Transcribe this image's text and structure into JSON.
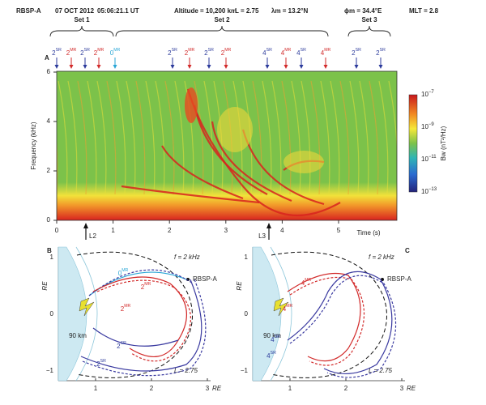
{
  "header": {
    "spacecraft": "RBSP-A",
    "date": "07 OCT 2012",
    "time": "05:06:21.1 UT",
    "altitude": "Altitude = 10,200 km",
    "l_shell": "L = 2.75",
    "latitude": "λm = 13.2°N",
    "longitude": "ϕm = 34.4°E",
    "mlt": "MLT = 2.8"
  },
  "sets": [
    "Set 1",
    "Set 2",
    "Set 3"
  ],
  "markers": [
    {
      "num": "2",
      "sup": "SR",
      "color": "#2b3a9b"
    },
    {
      "num": "2",
      "sup": "MR",
      "color": "#d22a2a"
    },
    {
      "num": "2",
      "sup": "SR",
      "color": "#2b3a9b"
    },
    {
      "num": "2",
      "sup": "MR",
      "color": "#d22a2a"
    },
    {
      "num": "0",
      "sup": "MR",
      "color": "#29a6d6"
    },
    {
      "num": "2",
      "sup": "SR",
      "color": "#2b3a9b"
    },
    {
      "num": "2",
      "sup": "MR",
      "color": "#d22a2a"
    },
    {
      "num": "2",
      "sup": "SR",
      "color": "#2b3a9b"
    },
    {
      "num": "2",
      "sup": "MR",
      "color": "#d22a2a"
    },
    {
      "num": "4",
      "sup": "SR",
      "color": "#2b3a9b"
    },
    {
      "num": "4",
      "sup": "MR",
      "color": "#d22a2a"
    },
    {
      "num": "4",
      "sup": "SR",
      "color": "#2b3a9b"
    },
    {
      "num": "4",
      "sup": "MR",
      "color": "#d22a2a"
    },
    {
      "num": "2",
      "sup": "SR",
      "color": "#2b3a9b"
    },
    {
      "num": "2",
      "sup": "SR",
      "color": "#2b3a9b"
    }
  ],
  "panel_a": {
    "label": "A",
    "y_label": "Frequency (kHz)",
    "y_ticks": [
      "0",
      "2",
      "4",
      "6"
    ],
    "x_ticks": [
      "0",
      "1",
      "2",
      "3",
      "4",
      "5"
    ],
    "x_label": "Time (s)",
    "arrows": [
      "L2",
      "L3"
    ],
    "colorbar": {
      "label": "Bw (nT²/Hz)",
      "ticks": [
        {
          "base": "10",
          "exp": "−7"
        },
        {
          "base": "10",
          "exp": "−9"
        },
        {
          "base": "10",
          "exp": "−11"
        },
        {
          "base": "10",
          "exp": "−13"
        }
      ]
    }
  },
  "panel_b": {
    "label": "B",
    "frequency": "f = 2 kHz",
    "spacecraft": "RBSP-A",
    "altitude": "90 km",
    "l_shell": "L = 2.75",
    "axis_unit": "RE",
    "y_ticks": [
      "1",
      "0",
      "−1"
    ],
    "x_ticks": [
      "1",
      "2",
      "3"
    ],
    "rays": [
      {
        "num": "0",
        "sup": "MR",
        "color": "#29a6d6"
      },
      {
        "num": "2",
        "sup": "MR",
        "color": "#d22a2a"
      },
      {
        "num": "2",
        "sup": "MR",
        "color": "#d22a2a"
      },
      {
        "num": "2",
        "sup": "SR",
        "color": "#2b3a9b"
      },
      {
        "num": "2",
        "sup": "SR",
        "color": "#2b3a9b"
      }
    ]
  },
  "panel_c": {
    "label": "C",
    "frequency": "f = 2 kHz",
    "spacecraft": "RBSP-A",
    "altitude": "90 km",
    "l_shell": "L = 2.75",
    "axis_unit": "RE",
    "y_ticks": [
      "1",
      "0",
      "−1"
    ],
    "x_ticks": [
      "1",
      "2",
      "3"
    ],
    "rays": [
      {
        "num": "4",
        "sup": "MR",
        "color": "#d22a2a"
      },
      {
        "num": "4",
        "sup": "MR",
        "color": "#d22a2a"
      },
      {
        "num": "4",
        "sup": "SR",
        "color": "#2b3a9b"
      },
      {
        "num": "4",
        "sup": "SR",
        "color": "#2b3a9b"
      }
    ]
  }
}
